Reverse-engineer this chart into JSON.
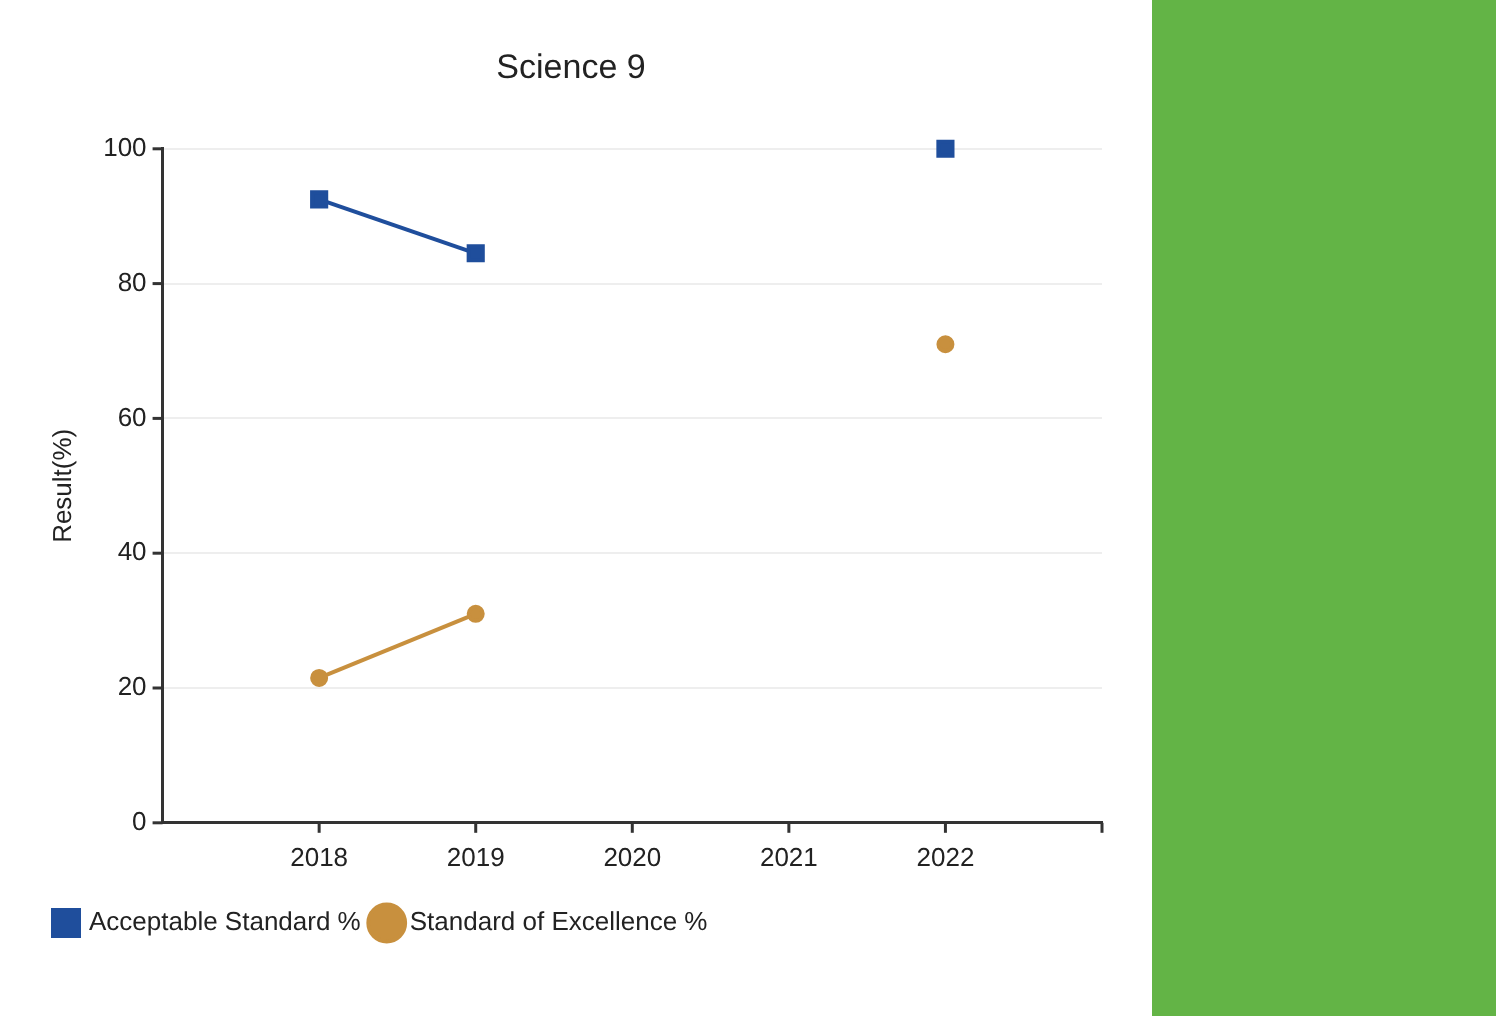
{
  "chart_data": {
    "type": "line",
    "title": "Science 9",
    "ylabel": "Result(%)",
    "x": [
      2018,
      2019,
      2020,
      2021,
      2022
    ],
    "series": [
      {
        "name": "Acceptable Standard %",
        "color": "#1f4e9c",
        "marker": "square",
        "values": [
          92.5,
          84.5,
          null,
          null,
          100
        ]
      },
      {
        "name": "Standard of Excellence %",
        "color": "#c8903e",
        "marker": "circle",
        "values": [
          21.5,
          31,
          null,
          null,
          71
        ]
      }
    ],
    "xlim": [
      2017,
      2023
    ],
    "xticks": [
      2018,
      2019,
      2020,
      2021,
      2022,
      {
        "value": 2023,
        "label": null
      }
    ],
    "ylim": [
      0,
      100
    ],
    "yticks": [
      0,
      20,
      40,
      60,
      80,
      100
    ],
    "grid": "y",
    "legend": "bottom",
    "line_style": "solid"
  }
}
